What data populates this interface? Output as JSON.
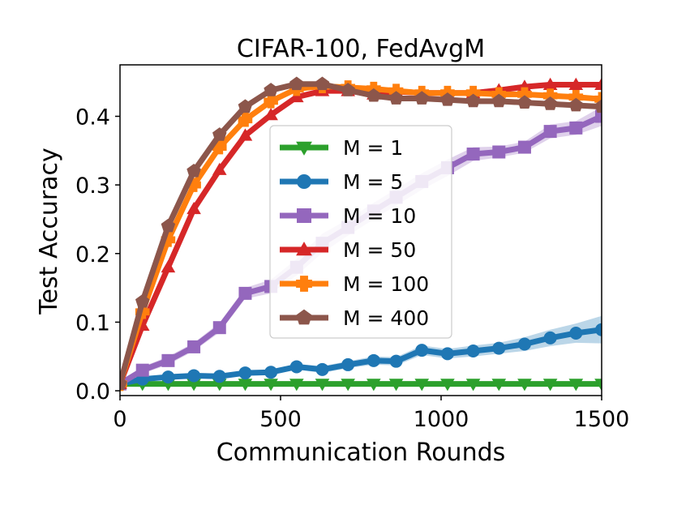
{
  "chart_data": {
    "type": "line",
    "title": "CIFAR-100, FedAvgM",
    "xlabel": "Communication Rounds",
    "ylabel": "Test Accuracy",
    "xlim": [
      0,
      1500
    ],
    "ylim": [
      -0.007,
      0.475
    ],
    "xticks": [
      0,
      500,
      1000,
      1500
    ],
    "xtick_labels": [
      "0",
      "500",
      "1000",
      "1500"
    ],
    "yticks": [
      0.0,
      0.1,
      0.2,
      0.3,
      0.4
    ],
    "ytick_labels": [
      "0.0",
      "0.1",
      "0.2",
      "0.3",
      "0.4"
    ],
    "grid": false,
    "legend_position": "center",
    "x": [
      0,
      70,
      150,
      230,
      310,
      390,
      470,
      550,
      630,
      710,
      790,
      860,
      940,
      1020,
      1100,
      1180,
      1260,
      1340,
      1420,
      1500
    ],
    "series": [
      {
        "name": "M = 1",
        "color": "#2ca02c",
        "marker": "triangle-down",
        "values": [
          0.01,
          0.01,
          0.01,
          0.01,
          0.01,
          0.01,
          0.01,
          0.01,
          0.01,
          0.01,
          0.01,
          0.01,
          0.01,
          0.01,
          0.01,
          0.01,
          0.01,
          0.01,
          0.01,
          0.01
        ],
        "band": [
          0.002,
          0.002,
          0.002,
          0.002,
          0.002,
          0.002,
          0.002,
          0.002,
          0.002,
          0.002,
          0.002,
          0.002,
          0.002,
          0.002,
          0.002,
          0.002,
          0.002,
          0.002,
          0.002,
          0.002
        ]
      },
      {
        "name": "M = 5",
        "color": "#1f77b4",
        "marker": "circle",
        "values": [
          0.01,
          0.017,
          0.02,
          0.022,
          0.021,
          0.026,
          0.027,
          0.035,
          0.031,
          0.038,
          0.044,
          0.043,
          0.059,
          0.054,
          0.058,
          0.062,
          0.068,
          0.077,
          0.084,
          0.089
        ],
        "band": [
          0.002,
          0.002,
          0.003,
          0.003,
          0.003,
          0.003,
          0.004,
          0.004,
          0.005,
          0.005,
          0.006,
          0.006,
          0.007,
          0.007,
          0.008,
          0.008,
          0.01,
          0.012,
          0.014,
          0.02
        ]
      },
      {
        "name": "M = 10",
        "color": "#9467bd",
        "marker": "square",
        "values": [
          0.01,
          0.03,
          0.044,
          0.064,
          0.092,
          0.142,
          0.152,
          0.18,
          0.215,
          0.238,
          0.262,
          0.282,
          0.305,
          0.325,
          0.345,
          0.348,
          0.355,
          0.378,
          0.383,
          0.4
        ],
        "band": [
          0.004,
          0.005,
          0.006,
          0.006,
          0.007,
          0.008,
          0.01,
          0.012,
          0.014,
          0.012,
          0.012,
          0.012,
          0.012,
          0.012,
          0.01,
          0.008,
          0.008,
          0.01,
          0.01,
          0.014
        ]
      },
      {
        "name": "M = 50",
        "color": "#d62728",
        "marker": "triangle-up",
        "values": [
          0.01,
          0.095,
          0.18,
          0.265,
          0.322,
          0.372,
          0.402,
          0.428,
          0.437,
          0.437,
          0.432,
          0.436,
          0.434,
          0.434,
          0.434,
          0.438,
          0.443,
          0.446,
          0.446,
          0.446
        ],
        "band": [
          0.003,
          0.005,
          0.005,
          0.005,
          0.005,
          0.005,
          0.005,
          0.004,
          0.004,
          0.004,
          0.004,
          0.004,
          0.004,
          0.004,
          0.004,
          0.004,
          0.004,
          0.004,
          0.004,
          0.004
        ]
      },
      {
        "name": "M = 100",
        "color": "#ff7f0e",
        "marker": "plus",
        "values": [
          0.01,
          0.115,
          0.22,
          0.3,
          0.355,
          0.395,
          0.422,
          0.44,
          0.444,
          0.442,
          0.44,
          0.437,
          0.434,
          0.434,
          0.434,
          0.432,
          0.432,
          0.43,
          0.428,
          0.425
        ],
        "band": [
          0.003,
          0.005,
          0.005,
          0.005,
          0.005,
          0.005,
          0.004,
          0.004,
          0.004,
          0.004,
          0.004,
          0.004,
          0.004,
          0.004,
          0.004,
          0.004,
          0.004,
          0.004,
          0.004,
          0.004
        ]
      },
      {
        "name": "M = 400",
        "color": "#8c564b",
        "marker": "pentagon",
        "values": [
          0.01,
          0.13,
          0.24,
          0.32,
          0.373,
          0.414,
          0.438,
          0.447,
          0.447,
          0.438,
          0.43,
          0.426,
          0.426,
          0.424,
          0.422,
          0.422,
          0.42,
          0.418,
          0.416,
          0.414
        ],
        "band": [
          0.003,
          0.005,
          0.005,
          0.005,
          0.005,
          0.005,
          0.004,
          0.004,
          0.004,
          0.004,
          0.004,
          0.004,
          0.004,
          0.004,
          0.004,
          0.004,
          0.004,
          0.004,
          0.004,
          0.004
        ]
      }
    ]
  }
}
